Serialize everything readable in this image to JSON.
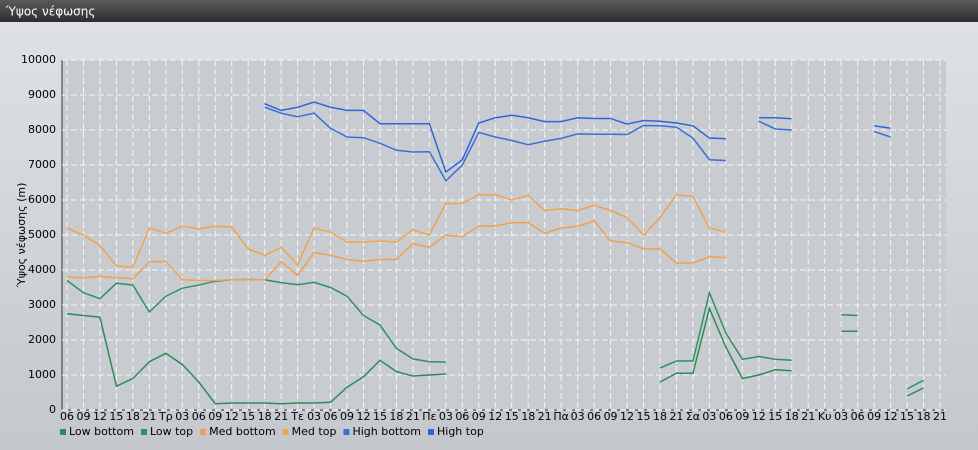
{
  "chart_data": {
    "type": "line",
    "title": "Ύψος νέφωσης",
    "y_label": "Ύψος νέφωσης (m)",
    "categories": [
      "06",
      "09",
      "12",
      "15",
      "18",
      "21",
      "Τρ",
      "03",
      "06",
      "09",
      "12",
      "15",
      "18",
      "21",
      "Τε",
      "03",
      "06",
      "09",
      "12",
      "15",
      "18",
      "21",
      "Πε",
      "03",
      "06",
      "09",
      "12",
      "15",
      "18",
      "21",
      "Πα",
      "03",
      "06",
      "09",
      "12",
      "15",
      "18",
      "21",
      "Σα",
      "03",
      "06",
      "09",
      "12",
      "15",
      "18",
      "21",
      "Κυ",
      "03",
      "06",
      "09",
      "12",
      "15",
      "18",
      "21"
    ],
    "ylim": [
      0,
      10000
    ],
    "yticks": [
      0,
      1000,
      2000,
      3000,
      4000,
      5000,
      6000,
      7000,
      8000,
      9000,
      10000
    ],
    "grid": true,
    "series": [
      {
        "name": "Low bottom",
        "color": "#2e8b57",
        "values": [
          2750,
          2700,
          2650,
          680,
          900,
          1380,
          1620,
          1300,
          800,
          180,
          200,
          200,
          200,
          180,
          200,
          200,
          220,
          650,
          950,
          1420,
          1100,
          970,
          1000,
          1030,
          null,
          null,
          null,
          null,
          null,
          null,
          null,
          null,
          null,
          null,
          null,
          null,
          800,
          1050,
          1050,
          2900,
          1800,
          900,
          1000,
          1150,
          1120,
          null,
          null,
          2250,
          2250,
          null,
          null,
          400,
          630,
          null
        ]
      },
      {
        "name": "Low top",
        "color": "#2f9160",
        "values": [
          3700,
          3350,
          3180,
          3620,
          3570,
          2800,
          3250,
          3480,
          3570,
          3680,
          3720,
          3730,
          3720,
          3640,
          3580,
          3650,
          3500,
          3250,
          2700,
          2430,
          1760,
          1460,
          1380,
          1370,
          null,
          null,
          null,
          null,
          null,
          null,
          null,
          null,
          null,
          null,
          null,
          null,
          1200,
          1400,
          1400,
          3350,
          2200,
          1450,
          1530,
          1450,
          1420,
          null,
          null,
          2720,
          2700,
          null,
          null,
          600,
          850,
          null
        ]
      },
      {
        "name": "Med bottom",
        "color": "#f0a050",
        "values": [
          3800,
          3780,
          3820,
          3780,
          3750,
          4230,
          4250,
          3720,
          3700,
          3700,
          3720,
          3720,
          3720,
          4230,
          3850,
          4500,
          4420,
          4300,
          4250,
          4300,
          4300,
          4750,
          4650,
          5000,
          4950,
          5250,
          5260,
          5350,
          5350,
          5050,
          5200,
          5250,
          5400,
          4830,
          4780,
          4600,
          4600,
          4200,
          4200,
          4380,
          4350,
          null,
          null,
          null,
          null,
          null,
          null,
          null,
          null,
          null,
          null,
          null,
          null,
          null
        ]
      },
      {
        "name": "Med top",
        "color": "#f2a24e",
        "values": [
          5200,
          5000,
          4700,
          4120,
          4080,
          5200,
          5050,
          5250,
          5180,
          5250,
          5230,
          4600,
          4420,
          4650,
          4150,
          5200,
          5080,
          4800,
          4800,
          4830,
          4800,
          5150,
          5000,
          5900,
          5900,
          6150,
          6150,
          6000,
          6130,
          5700,
          5750,
          5700,
          5850,
          5700,
          5500,
          5000,
          5500,
          6150,
          6100,
          5200,
          5080,
          null,
          null,
          null,
          null,
          null,
          null,
          null,
          null,
          null,
          null,
          null,
          null,
          null
        ]
      },
      {
        "name": "High bottom",
        "color": "#3a6fd8",
        "values": [
          null,
          null,
          null,
          null,
          null,
          null,
          null,
          null,
          null,
          null,
          null,
          null,
          8650,
          8480,
          8380,
          8480,
          8050,
          7800,
          7780,
          7620,
          7420,
          7370,
          7380,
          6550,
          7000,
          7930,
          7800,
          7700,
          7580,
          7680,
          7760,
          7890,
          7880,
          7880,
          7870,
          8130,
          8120,
          8080,
          7770,
          7150,
          7130,
          null,
          8250,
          8030,
          8000,
          null,
          null,
          null,
          null,
          7960,
          7800,
          null,
          null,
          null
        ]
      },
      {
        "name": "High top",
        "color": "#2f66d6",
        "values": [
          null,
          null,
          null,
          null,
          null,
          null,
          null,
          null,
          null,
          null,
          null,
          null,
          8750,
          8560,
          8650,
          8800,
          8650,
          8560,
          8560,
          8180,
          8180,
          8180,
          8180,
          6800,
          7150,
          8200,
          8350,
          8420,
          8350,
          8240,
          8240,
          8350,
          8330,
          8330,
          8170,
          8270,
          8250,
          8200,
          8120,
          7770,
          7750,
          null,
          8350,
          8350,
          8320,
          null,
          null,
          null,
          null,
          8120,
          8050,
          null,
          null,
          null
        ]
      }
    ]
  }
}
